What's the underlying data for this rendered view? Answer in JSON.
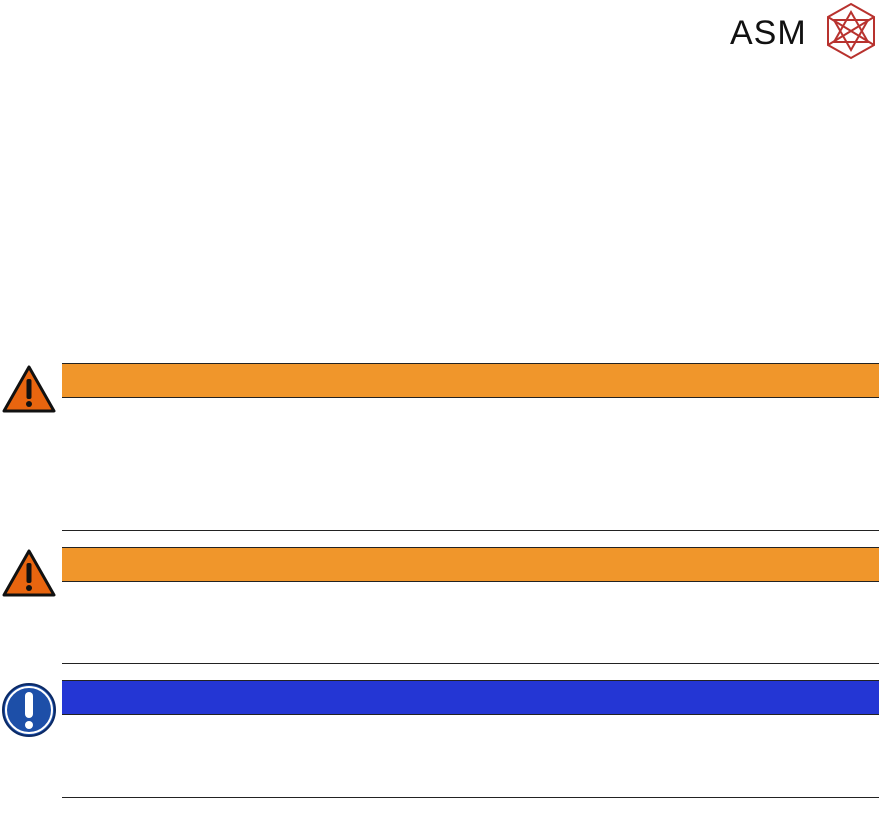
{
  "header": {
    "logo": "ASM"
  }
}
